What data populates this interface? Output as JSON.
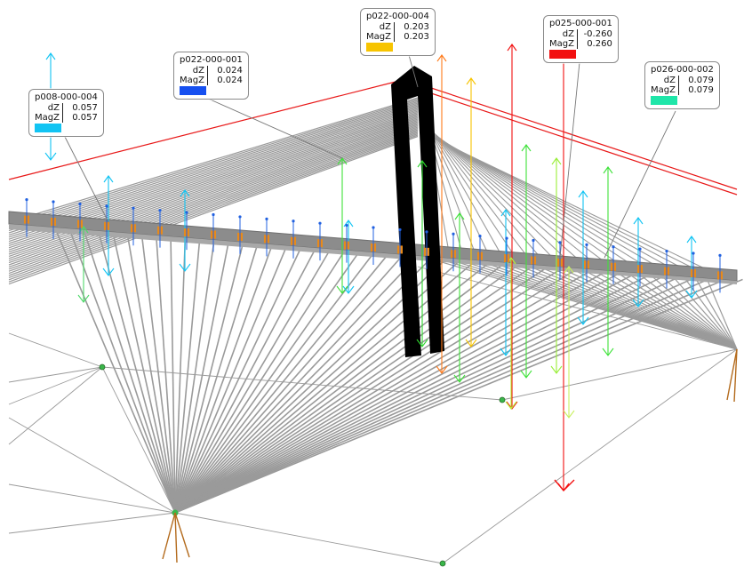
{
  "labels": [
    {
      "id": "p008-000-004",
      "dz_label": "dZ",
      "dz": "0.057",
      "magz_label": "MagZ",
      "magz": "0.057",
      "color": "#12c4f3"
    },
    {
      "id": "p022-000-001",
      "dz_label": "dZ",
      "dz": "0.024",
      "magz_label": "MagZ",
      "magz": "0.024",
      "color": "#1650f0"
    },
    {
      "id": "p022-000-004",
      "dz_label": "dZ",
      "dz": "0.203",
      "magz_label": "MagZ",
      "magz": "0.203",
      "color": "#f7c400"
    },
    {
      "id": "p025-000-001",
      "dz_label": "dZ",
      "dz": "-0.260",
      "magz_label": "MagZ",
      "magz": "0.260",
      "color": "#f21010"
    },
    {
      "id": "p026-000-002",
      "dz_label": "dZ",
      "dz": "0.079",
      "magz_label": "MagZ",
      "magz": "0.079",
      "color": "#1fe6a9"
    }
  ],
  "colors": {
    "deck": "#8c8c8c",
    "cable": "#9a9a9a",
    "pylon": "#000000",
    "rail": "#e81818",
    "target": "#e88a1a",
    "sight_line": "#9a9a9a"
  }
}
